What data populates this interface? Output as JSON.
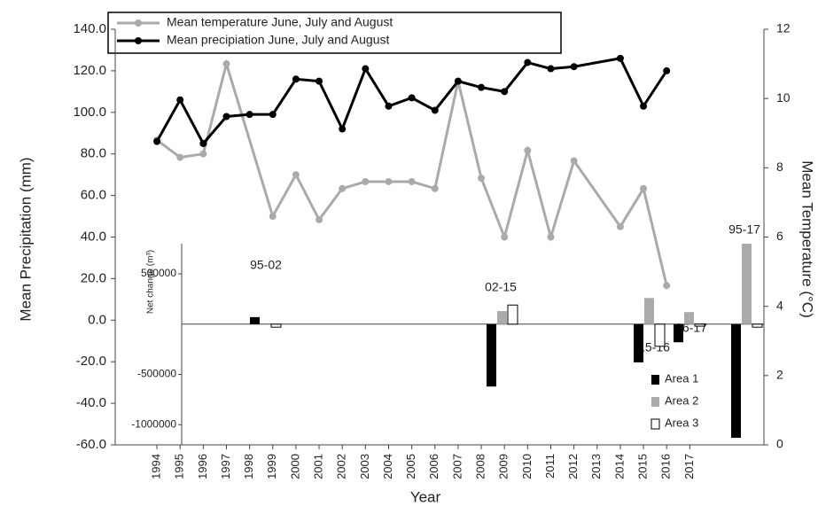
{
  "chart_data": [
    {
      "type": "line",
      "xlabel": "Year",
      "ylabel": "Mean Precipitation (mm)",
      "y2label": "Mean Temperature (°C)",
      "xlim": [
        1992.2,
        2020.2
      ],
      "xticks": [
        1994,
        1995,
        1996,
        1997,
        1998,
        1999,
        2000,
        2001,
        2002,
        2003,
        2004,
        2005,
        2006,
        2007,
        2008,
        2009,
        2010,
        2011,
        2012,
        2013,
        2014,
        2015,
        2016,
        2017
      ],
      "ylim": [
        -60,
        140
      ],
      "yticks": [
        {
          "value": -60,
          "label": "-60.0"
        },
        {
          "value": -40,
          "label": "-40.0"
        },
        {
          "value": -20,
          "label": "-20.0"
        },
        {
          "value": 0,
          "label": "0.0"
        },
        {
          "value": 20,
          "label": "20.0"
        },
        {
          "value": 40,
          "label": "40.0"
        },
        {
          "value": 60,
          "label": "60.0"
        },
        {
          "value": 80,
          "label": "80.0"
        },
        {
          "value": 100,
          "label": "100.0"
        },
        {
          "value": 120,
          "label": "120.0"
        },
        {
          "value": 140,
          "label": "140.0"
        }
      ],
      "y2lim": [
        0,
        12
      ],
      "y2ticks": [
        0,
        2,
        4,
        6,
        8,
        10,
        12
      ],
      "series": [
        {
          "name": "Mean temperature June, July and August",
          "color": "#aaaaaa",
          "axis": "y2",
          "x": [
            1994,
            1995,
            1996,
            1997,
            1999,
            2000,
            2001,
            2002,
            2003,
            2004,
            2005,
            2006,
            2007,
            2008,
            2009,
            2010,
            2011,
            2012,
            2014,
            2015,
            2016
          ],
          "values": [
            8.8,
            8.3,
            8.4,
            11.0,
            6.6,
            7.8,
            6.5,
            7.4,
            7.6,
            7.6,
            7.6,
            7.4,
            10.5,
            7.7,
            6.0,
            8.5,
            6.0,
            8.2,
            6.3,
            7.4,
            4.6
          ]
        },
        {
          "name": "Mean precipiation June, July and August",
          "color": "#000000",
          "x": [
            1994,
            1995,
            1996,
            1997,
            1998,
            1999,
            2000,
            2001,
            2002,
            2003,
            2004,
            2005,
            2006,
            2007,
            2008,
            2009,
            2010,
            2011,
            2012,
            2014,
            2015,
            2016
          ],
          "values": [
            86,
            106,
            85,
            98,
            99,
            99,
            116,
            115,
            92,
            121,
            103,
            107,
            101,
            115,
            112,
            110,
            124,
            121,
            122,
            126,
            103,
            120
          ]
        }
      ]
    },
    {
      "type": "bar",
      "ylabel": "Net change (m³)",
      "categories": [
        "95-02",
        "02-15",
        "15-16",
        "16-17",
        "95-17"
      ],
      "ylim": [
        -1200000,
        800000
      ],
      "yticks": [
        -1000000,
        -500000,
        500000
      ],
      "series": [
        {
          "name": "Area 1",
          "color": "#000000",
          "values": [
            70000,
            -620000,
            -380000,
            -180000,
            -1130000
          ]
        },
        {
          "name": "Area 2",
          "color": "#aaaaaa",
          "values": [
            0,
            130000,
            260000,
            120000,
            800000
          ]
        },
        {
          "name": "Area 3",
          "color": "#ffffff",
          "values": [
            -30000,
            190000,
            -220000,
            -20000,
            -30000
          ]
        }
      ]
    }
  ]
}
